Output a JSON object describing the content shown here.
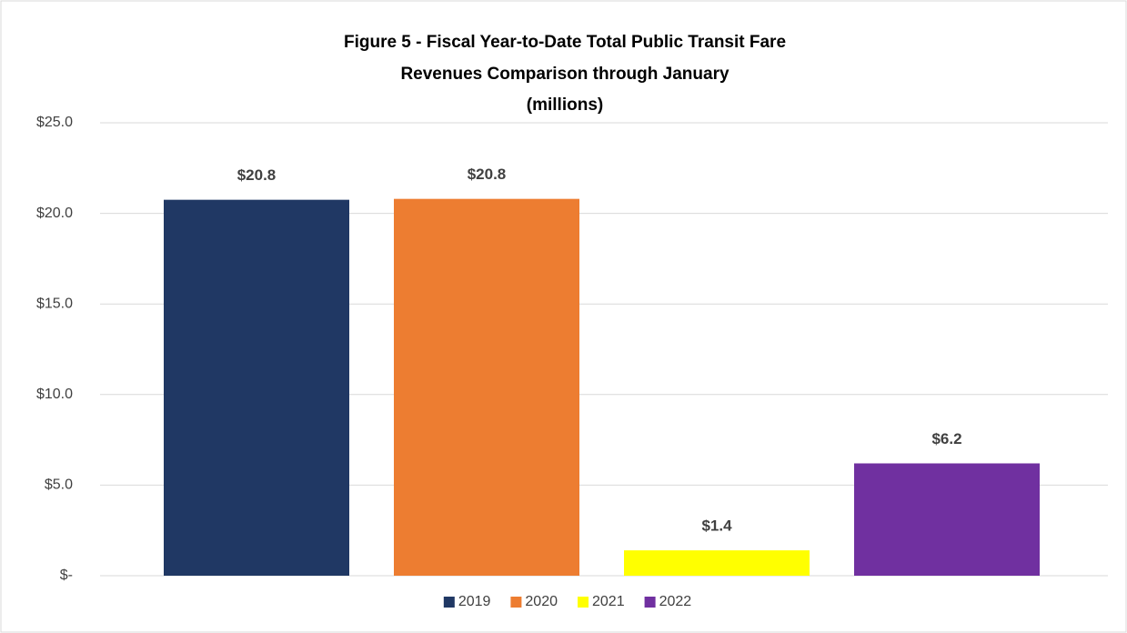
{
  "chart_data": {
    "type": "bar",
    "title": [
      "Figure 5 - Fiscal Year-to-Date Total Public Transit Fare",
      "Revenues Comparison through January",
      "(millions)"
    ],
    "series": [
      {
        "name": "2019",
        "color": "#203864",
        "values": [
          20.75
        ],
        "value_labels": [
          "$20.8"
        ]
      },
      {
        "name": "2020",
        "color": "#ed7d31",
        "values": [
          20.8
        ],
        "value_labels": [
          "$20.8"
        ]
      },
      {
        "name": "2021",
        "color": "#ffff00",
        "values": [
          1.4
        ],
        "value_labels": [
          "$1.4"
        ]
      },
      {
        "name": "2022",
        "color": "#7030a0",
        "values": [
          6.2
        ],
        "value_labels": [
          "$6.2"
        ]
      }
    ],
    "ylim": [
      0,
      25
    ],
    "yticks": [
      {
        "value": 0,
        "label": "$-"
      },
      {
        "value": 5,
        "label": "$5.0"
      },
      {
        "value": 10,
        "label": "$10.0"
      },
      {
        "value": 15,
        "label": "$15.0"
      },
      {
        "value": 20,
        "label": "$20.0"
      },
      {
        "value": 25,
        "label": "$25.0"
      }
    ],
    "grid": true,
    "legend": "bottom"
  }
}
